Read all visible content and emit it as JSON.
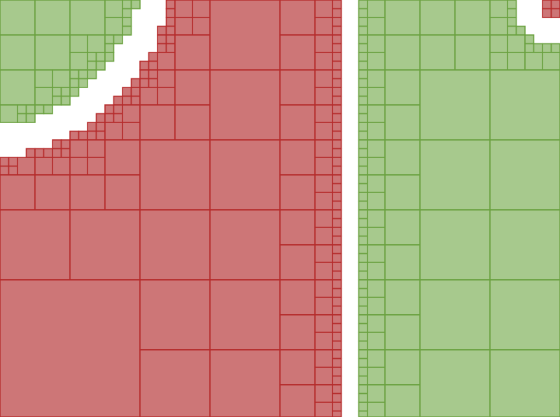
{
  "figure": {
    "kind": "adaptive-quadtree-mesh",
    "background": "#ffffff",
    "regions": [
      {
        "id": "red-region",
        "fill": "#cd7677",
        "stroke": "#b52b2b"
      },
      {
        "id": "green-region",
        "fill": "#a7c98d",
        "stroke": "#6aa13f"
      }
    ]
  }
}
